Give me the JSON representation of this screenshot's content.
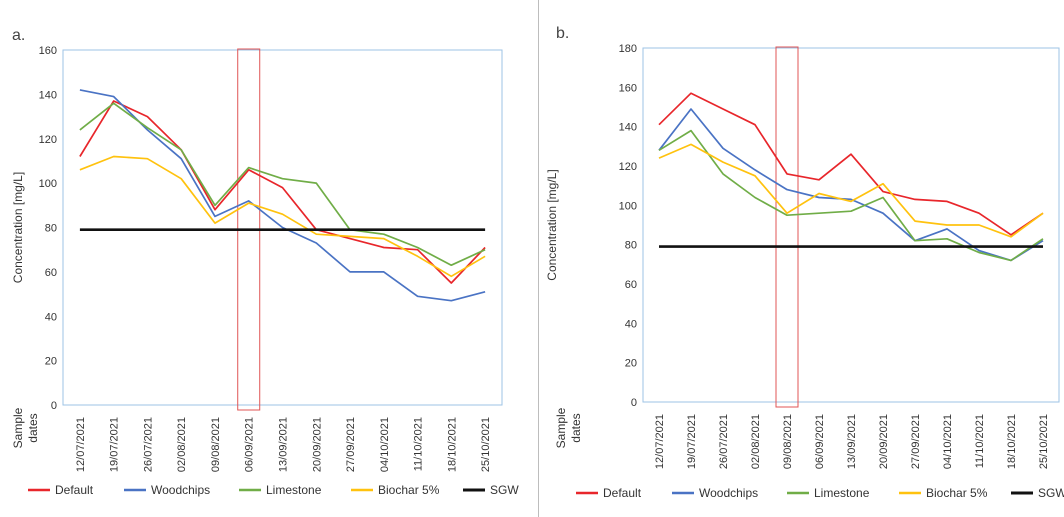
{
  "dates": [
    "12/07/2021",
    "19/07/2021",
    "26/07/2021",
    "02/08/2021",
    "09/08/2021",
    "06/09/2021",
    "13/09/2021",
    "20/09/2021",
    "27/09/2021",
    "04/10/2021",
    "11/10/2021",
    "18/10/2021",
    "25/10/2021"
  ],
  "chart_data": [
    {
      "type": "line",
      "panel_label": "a.",
      "ylabel": "Concentration [mg/L]",
      "xlabel": "Sample dates",
      "ylim": [
        0,
        160
      ],
      "yticks": [
        0,
        20,
        40,
        60,
        80,
        100,
        120,
        140,
        160
      ],
      "grid": false,
      "highlight_date": "06/09/2021",
      "series": [
        {
          "name": "Default",
          "color": "#e8262b",
          "values": [
            112,
            137,
            130,
            115,
            88,
            106,
            98,
            79,
            75,
            71,
            70,
            55,
            71
          ]
        },
        {
          "name": "Woodchips",
          "color": "#4a73c4",
          "values": [
            142,
            139,
            124,
            111,
            85,
            92,
            80,
            73,
            60,
            60,
            49,
            47,
            51
          ]
        },
        {
          "name": "Limestone",
          "color": "#70ad47",
          "values": [
            124,
            136,
            125,
            115,
            90,
            107,
            102,
            100,
            79,
            77,
            71,
            63,
            70
          ]
        },
        {
          "name": "Biochar 5%",
          "color": "#ffc20e",
          "values": [
            106,
            112,
            111,
            102,
            82,
            91,
            86,
            77,
            76,
            75,
            67,
            58,
            67
          ]
        },
        {
          "name": "SGW",
          "color": "#111111",
          "values": [
            79,
            79,
            79,
            79,
            79,
            79,
            79,
            79,
            79,
            79,
            79,
            79,
            79
          ]
        }
      ]
    },
    {
      "type": "line",
      "panel_label": "b.",
      "ylabel": "Concentration [mg/L]",
      "xlabel": "Sample dates",
      "ylim": [
        0,
        180
      ],
      "yticks": [
        0,
        20,
        40,
        60,
        80,
        100,
        120,
        140,
        160,
        180
      ],
      "grid": false,
      "highlight_date": "09/08/2021",
      "series": [
        {
          "name": "Default",
          "color": "#e8262b",
          "values": [
            141,
            157,
            149,
            141,
            116,
            113,
            126,
            107,
            103,
            102,
            96,
            85,
            96
          ]
        },
        {
          "name": "Woodchips",
          "color": "#4a73c4",
          "values": [
            128,
            149,
            129,
            118,
            108,
            104,
            103,
            96,
            82,
            88,
            77,
            72,
            82
          ]
        },
        {
          "name": "Limestone",
          "color": "#70ad47",
          "values": [
            128,
            138,
            116,
            104,
            95,
            96,
            97,
            104,
            82,
            83,
            76,
            72,
            83
          ]
        },
        {
          "name": "Biochar 5%",
          "color": "#ffc20e",
          "values": [
            124,
            131,
            122,
            115,
            96,
            106,
            102,
            111,
            92,
            90,
            90,
            84,
            96
          ]
        },
        {
          "name": "SGW",
          "color": "#111111",
          "values": [
            79,
            79,
            79,
            79,
            79,
            79,
            79,
            79,
            79,
            79,
            79,
            79,
            79
          ]
        }
      ]
    }
  ]
}
